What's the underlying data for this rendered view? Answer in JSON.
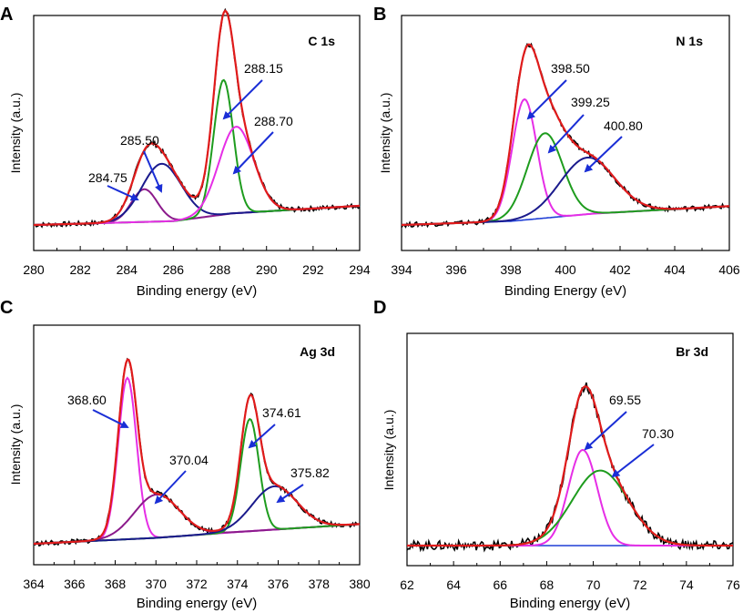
{
  "chart_data": [
    {
      "type": "line",
      "panel_letter": "A",
      "label": "C 1s",
      "xlabel": "Binding energy (eV)",
      "ylabel": "Intensity (a.u.)",
      "xlim": [
        280,
        294
      ],
      "ylim": [
        0,
        1
      ],
      "xticks": [
        "280",
        "282",
        "284",
        "286",
        "288",
        "290",
        "292",
        "294"
      ],
      "baseline": [
        [
          280,
          0.0
        ],
        [
          286,
          0.02
        ],
        [
          288.5,
          0.06
        ],
        [
          294,
          0.1
        ]
      ],
      "series": [
        {
          "name": "284.75",
          "center": 284.75,
          "height": 0.17,
          "width": 0.55,
          "color": "#8b1a8b"
        },
        {
          "name": "285.50",
          "center": 285.5,
          "height": 0.3,
          "width": 0.85,
          "color": "#1a1a8c"
        },
        {
          "name": "288.15",
          "center": 288.15,
          "height": 0.7,
          "width": 0.42,
          "color": "#1e9c1e"
        },
        {
          "name": "288.70",
          "center": 288.7,
          "height": 0.45,
          "width": 0.75,
          "color": "#e62ee6"
        }
      ],
      "annotations": [
        {
          "text": "288.15",
          "x": 288.15
        },
        {
          "text": "285.50",
          "x": 285.5
        },
        {
          "text": "288.70",
          "x": 288.7
        },
        {
          "text": "284.75",
          "x": 284.75
        }
      ]
    },
    {
      "type": "line",
      "panel_letter": "B",
      "label": "N 1s",
      "xlabel": "Binding Energy (eV)",
      "ylabel": "Intensity (a.u.)",
      "xlim": [
        394,
        406
      ],
      "ylim": [
        0,
        1
      ],
      "xticks": [
        "394",
        "396",
        "398",
        "400",
        "402",
        "404",
        "406"
      ],
      "baseline": [
        [
          394,
          0.0
        ],
        [
          398,
          0.02
        ],
        [
          401,
          0.06
        ],
        [
          406,
          0.1
        ]
      ],
      "series": [
        {
          "name": "398.50",
          "center": 398.5,
          "height": 0.64,
          "width": 0.45,
          "color": "#e62ee6"
        },
        {
          "name": "399.25",
          "center": 399.25,
          "height": 0.45,
          "width": 0.65,
          "color": "#1e9c1e"
        },
        {
          "name": "400.80",
          "center": 400.8,
          "height": 0.3,
          "width": 1.0,
          "color": "#1a1a8c"
        }
      ],
      "annotations": [
        {
          "text": "398.50",
          "x": 398.5
        },
        {
          "text": "399.25",
          "x": 399.25
        },
        {
          "text": "400.80",
          "x": 400.8
        }
      ]
    },
    {
      "type": "line",
      "panel_letter": "C",
      "label": "Ag 3d",
      "xlabel": "Binding energy (eV)",
      "ylabel": "Intensity (a.u.)",
      "xlim": [
        364,
        380
      ],
      "ylim": [
        0,
        1
      ],
      "xticks": [
        "364",
        "366",
        "368",
        "370",
        "372",
        "374",
        "376",
        "378",
        "380"
      ],
      "baseline": [
        [
          364,
          0.0
        ],
        [
          370,
          0.03
        ],
        [
          374,
          0.06
        ],
        [
          380,
          0.1
        ]
      ],
      "series": [
        {
          "name": "368.60",
          "center": 368.6,
          "height": 0.82,
          "width": 0.45,
          "color": "#e62ee6"
        },
        {
          "name": "370.04",
          "center": 370.04,
          "height": 0.22,
          "width": 1.1,
          "color": "#8b1a8b"
        },
        {
          "name": "374.61",
          "center": 374.61,
          "height": 0.57,
          "width": 0.45,
          "color": "#1e9c1e"
        },
        {
          "name": "375.82",
          "center": 375.82,
          "height": 0.22,
          "width": 1.1,
          "color": "#1a1a8c"
        }
      ],
      "annotations": [
        {
          "text": "368.60",
          "x": 368.6
        },
        {
          "text": "370.04",
          "x": 370.04
        },
        {
          "text": "374.61",
          "x": 374.61
        },
        {
          "text": "375.82",
          "x": 375.82
        }
      ]
    },
    {
      "type": "line",
      "panel_letter": "D",
      "label": "Br 3d",
      "xlabel": "Binding energy (eV)",
      "ylabel": "Intensity (a.u.)",
      "xlim": [
        62,
        76
      ],
      "ylim": [
        0,
        1
      ],
      "xticks": [
        "62",
        "64",
        "66",
        "68",
        "70",
        "72",
        "74",
        "76"
      ],
      "baseline": [
        [
          62,
          0.0
        ],
        [
          76,
          0.0
        ]
      ],
      "series": [
        {
          "name": "69.55",
          "center": 69.55,
          "height": 0.51,
          "width": 0.62,
          "color": "#e62ee6"
        },
        {
          "name": "70.30",
          "center": 70.3,
          "height": 0.4,
          "width": 1.2,
          "color": "#1e9c1e"
        }
      ],
      "annotations": [
        {
          "text": "69.55",
          "x": 69.55
        },
        {
          "text": "70.30",
          "x": 70.3
        }
      ]
    }
  ],
  "colors": {
    "raw": "#000000",
    "envelope": "#e01b1b",
    "baseline": "#1f3fd6",
    "arrow": "#1a2ed6",
    "axis": "#000000"
  }
}
